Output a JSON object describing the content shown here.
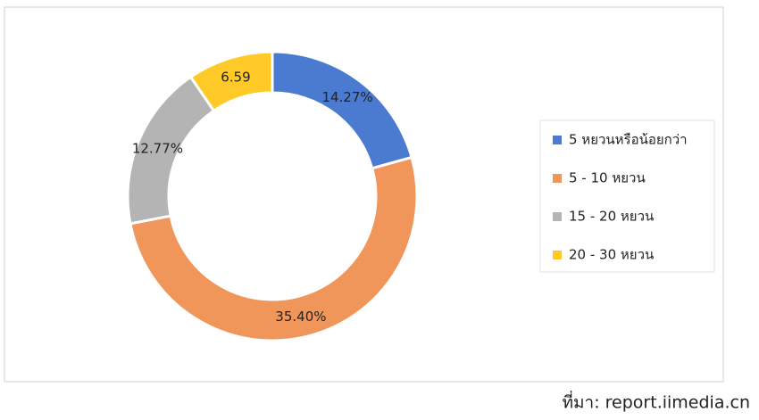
{
  "chart_data": {
    "type": "donut",
    "categories": [
      "5 หยวนหรือน้อยกว่า",
      "5 - 10 หยวน",
      "15 - 20 หยวน",
      "20 - 30 หยวน"
    ],
    "values": [
      14.27,
      35.4,
      12.77,
      6.59
    ],
    "value_labels": [
      "14.27%",
      "35.40%",
      "12.77%",
      "6.59"
    ],
    "colors": [
      "#4a7bd0",
      "#f0965a",
      "#b4b4b4",
      "#ffc928"
    ],
    "source": "ที่มา: report.iimedia.cn"
  }
}
